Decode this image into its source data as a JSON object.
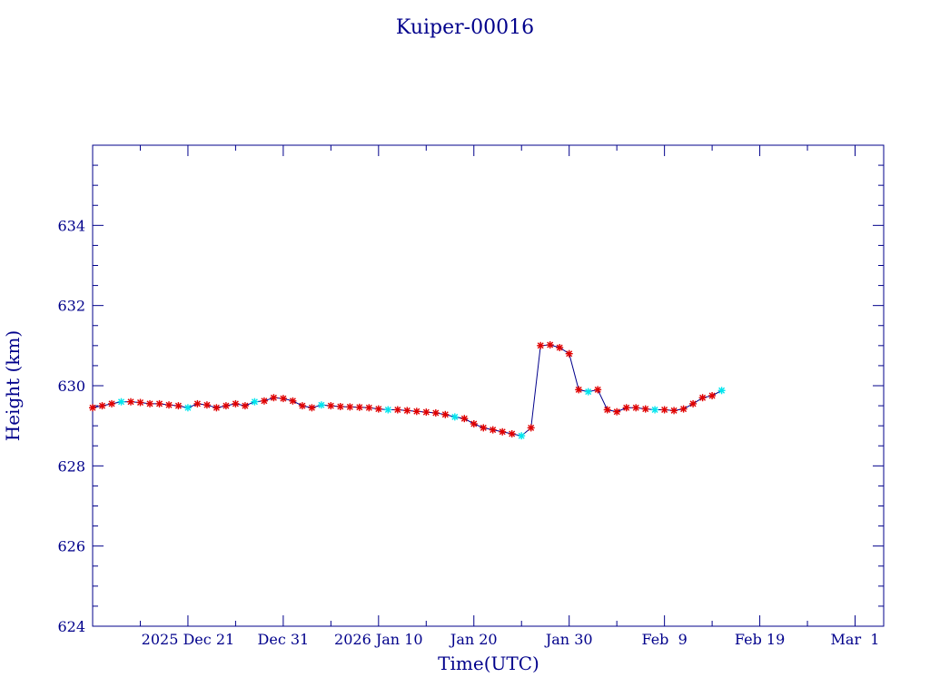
{
  "chart_data": {
    "type": "line",
    "title": "Kuiper-00016",
    "xlabel": "Time(UTC)",
    "ylabel": "Height (km)",
    "x_axis_type": "date",
    "xlim": [
      "2025-12-11",
      "2026-03-04"
    ],
    "ylim": [
      624,
      636
    ],
    "y_ticks": [
      624,
      626,
      628,
      630,
      632,
      634
    ],
    "x_ticks": [
      {
        "date": "2025-12-21",
        "label": "2025 Dec 21"
      },
      {
        "date": "2025-12-31",
        "label": "Dec 31"
      },
      {
        "date": "2026-01-10",
        "label": "2026 Jan 10"
      },
      {
        "date": "2026-01-20",
        "label": "Jan 20"
      },
      {
        "date": "2026-01-30",
        "label": "Jan 30"
      },
      {
        "date": "2026-02-09",
        "label": "Feb  9"
      },
      {
        "date": "2026-02-19",
        "label": "Feb 19"
      },
      {
        "date": "2026-03-01",
        "label": "Mar  1"
      }
    ],
    "grid": false,
    "colors": {
      "axes": "#00008b",
      "line": "#00008b",
      "marker": "#e00000",
      "marker_alt": "#00e5ee"
    },
    "series": [
      {
        "marker": "star",
        "x": [
          "2025-12-11",
          "2025-12-12",
          "2025-12-13",
          "2025-12-14",
          "2025-12-15",
          "2025-12-16",
          "2025-12-17",
          "2025-12-18",
          "2025-12-19",
          "2025-12-20",
          "2025-12-21",
          "2025-12-22",
          "2025-12-23",
          "2025-12-24",
          "2025-12-25",
          "2025-12-26",
          "2025-12-27",
          "2025-12-28",
          "2025-12-29",
          "2025-12-30",
          "2025-12-31",
          "2026-01-01",
          "2026-01-02",
          "2026-01-03",
          "2026-01-04",
          "2026-01-05",
          "2026-01-06",
          "2026-01-07",
          "2026-01-08",
          "2026-01-09",
          "2026-01-10",
          "2026-01-11",
          "2026-01-12",
          "2026-01-13",
          "2026-01-14",
          "2026-01-15",
          "2026-01-16",
          "2026-01-17",
          "2026-01-18",
          "2026-01-19",
          "2026-01-20",
          "2026-01-21",
          "2026-01-22",
          "2026-01-23",
          "2026-01-24",
          "2026-01-25",
          "2026-01-26",
          "2026-01-27",
          "2026-01-28",
          "2026-01-29",
          "2026-01-30",
          "2026-01-31",
          "2026-02-01",
          "2026-02-02",
          "2026-02-03",
          "2026-02-04",
          "2026-02-05",
          "2026-02-06",
          "2026-02-07",
          "2026-02-08",
          "2026-02-09",
          "2026-02-10",
          "2026-02-11",
          "2026-02-12",
          "2026-02-13",
          "2026-02-14",
          "2026-02-15"
        ],
        "y": [
          629.45,
          629.5,
          629.55,
          629.6,
          629.6,
          629.58,
          629.55,
          629.55,
          629.52,
          629.5,
          629.45,
          629.55,
          629.52,
          629.45,
          629.5,
          629.55,
          629.5,
          629.6,
          629.62,
          629.7,
          629.68,
          629.62,
          629.5,
          629.45,
          629.52,
          629.5,
          629.48,
          629.47,
          629.46,
          629.45,
          629.42,
          629.4,
          629.4,
          629.38,
          629.36,
          629.34,
          629.32,
          629.28,
          629.22,
          629.18,
          629.05,
          628.95,
          628.9,
          628.85,
          628.8,
          628.75,
          628.95,
          631.0,
          631.02,
          630.95,
          630.8,
          629.9,
          629.85,
          629.9,
          629.4,
          629.35,
          629.45,
          629.45,
          629.42,
          629.4,
          629.4,
          629.38,
          629.42,
          629.55,
          629.7,
          629.75,
          629.88
        ]
      }
    ]
  }
}
